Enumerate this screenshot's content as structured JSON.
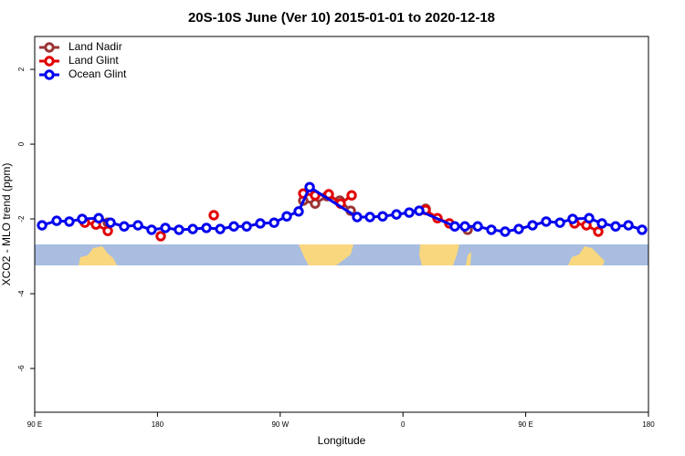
{
  "chart_data": {
    "type": "line",
    "title": "20S-10S June (Ver 10)   2015-01-01 to 2020-12-18",
    "x_label": "Longitude",
    "y_label": "XCO2 - MLO trend (ppm)",
    "xlim": [
      90,
      540
    ],
    "ylim": [
      -7.17,
      2.88
    ],
    "xticks": [
      {
        "value": 90,
        "label": "90 E"
      },
      {
        "value": 180,
        "label": "180"
      },
      {
        "value": 270,
        "label": "90 W"
      },
      {
        "value": 360,
        "label": "0"
      },
      {
        "value": 450,
        "label": "90 E"
      },
      {
        "value": 540,
        "label": "180"
      }
    ],
    "yticks": [
      2,
      0,
      -2,
      -4,
      -6
    ],
    "legend": "top-left",
    "series": [
      {
        "name": "Land Nadir",
        "color": "#9b3535",
        "x": [
          143.6,
          null,
          286.9,
          295.6,
          304.3,
          313.7,
          321.7,
          null,
          376.6,
          null,
          407.4
        ],
        "values": [
          -2.1,
          null,
          -1.51,
          -1.59,
          -1.39,
          -1.51,
          -1.78,
          null,
          -1.73,
          null,
          -2.29
        ]
      },
      {
        "name": "Land Glint",
        "color": "#e00000",
        "x": [
          126.8,
          134.9,
          143.6,
          null,
          182.4,
          null,
          221.3,
          null,
          286.9,
          295.6,
          305.6,
          314.3,
          322.4,
          null,
          376.6,
          385.3,
          394.0,
          null,
          485.8,
          494.5,
          503.2
        ],
        "values": [
          -2.1,
          -2.15,
          -2.32,
          null,
          -2.46,
          null,
          -1.9,
          null,
          -1.32,
          -1.37,
          -1.34,
          -1.59,
          -1.37,
          null,
          -1.76,
          -1.98,
          -2.12,
          null,
          -2.12,
          -2.17,
          -2.34
        ]
      },
      {
        "name": "Ocean Glint",
        "color": "#0000ee",
        "x": [
          95.4,
          106.1,
          115.4,
          124.8,
          136.9,
          145.6,
          155.6,
          165.7,
          175.7,
          185.8,
          195.8,
          205.9,
          215.9,
          226.0,
          236.0,
          245.4,
          255.4,
          265.5,
          274.8,
          283.5,
          291.6,
          326.4,
          335.8,
          345.1,
          355.2,
          364.6,
          371.9,
          398.0,
          405.4,
          414.8,
          424.8,
          434.9,
          444.9,
          455.0,
          465.0,
          475.1,
          484.4,
          496.5,
          505.9,
          515.9,
          525.3,
          535.3
        ],
        "values": [
          -2.17,
          -2.05,
          -2.07,
          -2.0,
          -1.98,
          -2.1,
          -2.2,
          -2.17,
          -2.29,
          -2.24,
          -2.29,
          -2.27,
          -2.24,
          -2.27,
          -2.2,
          -2.2,
          -2.12,
          -2.1,
          -1.93,
          -1.8,
          -1.15,
          -1.95,
          -1.95,
          -1.93,
          -1.88,
          -1.83,
          -1.78,
          -2.2,
          -2.2,
          -2.2,
          -2.29,
          -2.34,
          -2.27,
          -2.17,
          -2.07,
          -2.1,
          -2.0,
          -1.98,
          -2.12,
          -2.2,
          -2.17,
          -2.29
        ]
      }
    ]
  }
}
